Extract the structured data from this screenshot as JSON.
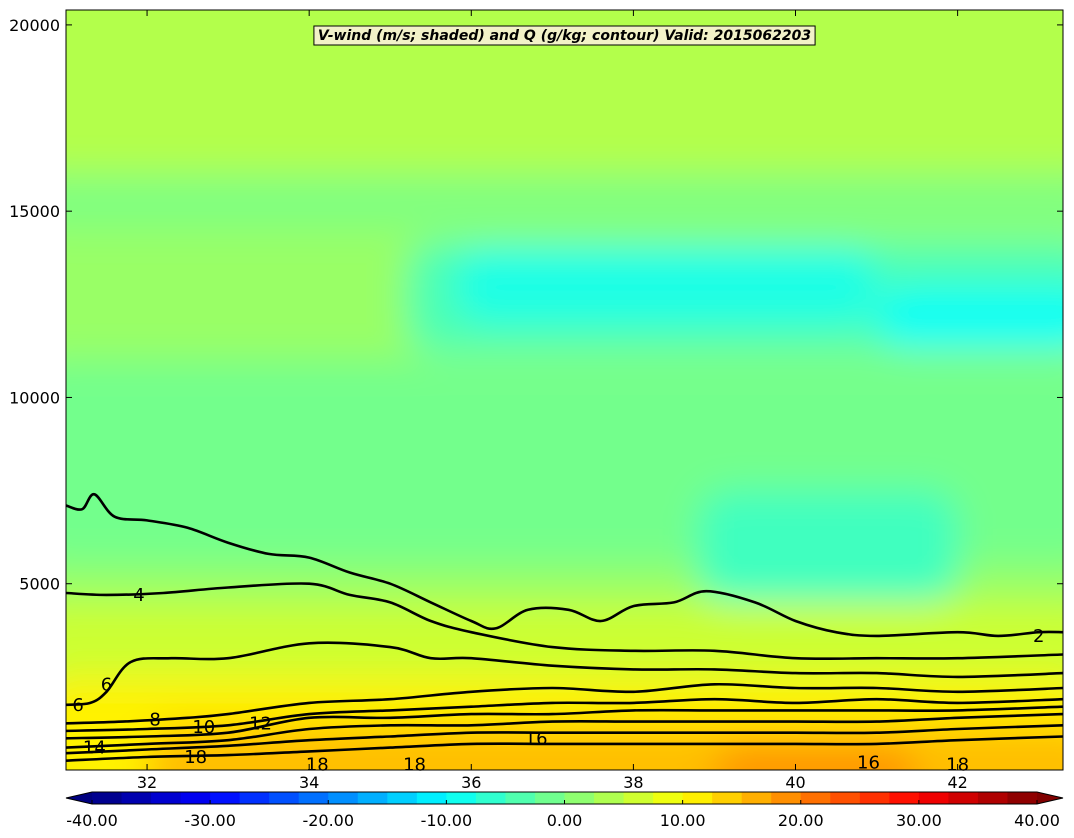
{
  "chart_data": {
    "type": "heatmap",
    "title": "V-wind (m/s; shaded) and Q (g/kg; contour) Valid: 2015062203",
    "xlabel": "",
    "ylabel": "",
    "xlim": [
      31.0,
      43.3
    ],
    "ylim": [
      0,
      20400
    ],
    "x_ticks": [
      32,
      34,
      36,
      38,
      40,
      42
    ],
    "y_ticks": [
      5000,
      10000,
      15000,
      20000
    ],
    "colorbar": {
      "orientation": "horizontal",
      "range": [
        -40,
        40
      ],
      "ticks": [
        "-40.00",
        "-30.00",
        "-20.00",
        "-10.00",
        "0.00",
        "10.00",
        "20.00",
        "30.00",
        "40.00"
      ],
      "extend": "both"
    },
    "shaded_field": {
      "name": "V-wind (m/s)",
      "colormap": "jet",
      "regions": [
        {
          "x_range": [
            31.0,
            43.3
          ],
          "y_range": [
            0,
            20400
          ],
          "value": 2
        },
        {
          "x_range": [
            31.0,
            43.3
          ],
          "y_range": [
            16000,
            20400
          ],
          "value": 4
        },
        {
          "x_range": [
            31.0,
            43.3
          ],
          "y_range": [
            14500,
            16000
          ],
          "value": 0
        },
        {
          "x_range": [
            35.2,
            43.3
          ],
          "y_range": [
            11200,
            14200
          ],
          "value": -4
        },
        {
          "x_range": [
            35.8,
            41.0
          ],
          "y_range": [
            12000,
            14000
          ],
          "value": -8
        },
        {
          "x_range": [
            41.0,
            43.3
          ],
          "y_range": [
            11300,
            13000
          ],
          "value": -9
        },
        {
          "x_range": [
            31.0,
            43.3
          ],
          "y_range": [
            5500,
            11000
          ],
          "value": -1
        },
        {
          "x_range": [
            38.8,
            42.0
          ],
          "y_range": [
            4500,
            7500
          ],
          "value": -5
        },
        {
          "x_range": [
            31.0,
            43.3
          ],
          "y_range": [
            2500,
            4500
          ],
          "value": 6
        },
        {
          "x_range": [
            31.0,
            43.3
          ],
          "y_range": [
            0,
            2500
          ],
          "value": 11
        },
        {
          "x_range": [
            32.0,
            43.3
          ],
          "y_range": [
            0,
            1200
          ],
          "value": 15
        },
        {
          "x_range": [
            39.0,
            41.5
          ],
          "y_range": [
            0,
            700
          ],
          "value": 18
        }
      ]
    },
    "contour_field": {
      "name": "Q (g/kg)",
      "color": "#000000",
      "levels": [
        {
          "level": 2,
          "label": "2",
          "label_at": [
            43.0,
            3600
          ],
          "path": [
            [
              31.0,
              7100
            ],
            [
              31.2,
              7000
            ],
            [
              31.35,
              7400
            ],
            [
              31.6,
              6800
            ],
            [
              32.0,
              6700
            ],
            [
              32.5,
              6500
            ],
            [
              33.0,
              6100
            ],
            [
              33.5,
              5800
            ],
            [
              34.0,
              5700
            ],
            [
              34.5,
              5300
            ],
            [
              35.0,
              5000
            ],
            [
              35.5,
              4500
            ],
            [
              36.0,
              4000
            ],
            [
              36.3,
              3800
            ],
            [
              36.7,
              4300
            ],
            [
              37.2,
              4300
            ],
            [
              37.6,
              4000
            ],
            [
              38.0,
              4400
            ],
            [
              38.5,
              4500
            ],
            [
              38.9,
              4800
            ],
            [
              39.5,
              4500
            ],
            [
              40.0,
              4000
            ],
            [
              40.5,
              3700
            ],
            [
              41.0,
              3600
            ],
            [
              42.0,
              3700
            ],
            [
              42.5,
              3600
            ],
            [
              43.0,
              3700
            ],
            [
              43.3,
              3700
            ]
          ]
        },
        {
          "level": 4,
          "label": "4",
          "label_at": [
            31.9,
            4700
          ],
          "path": [
            [
              31.0,
              4750
            ],
            [
              31.5,
              4700
            ],
            [
              32.2,
              4750
            ],
            [
              33.0,
              4900
            ],
            [
              34.0,
              5000
            ],
            [
              34.5,
              4700
            ],
            [
              35.0,
              4500
            ],
            [
              35.5,
              4000
            ],
            [
              36.0,
              3700
            ],
            [
              37.0,
              3300
            ],
            [
              38.0,
              3200
            ],
            [
              39.0,
              3200
            ],
            [
              40.0,
              3000
            ],
            [
              41.0,
              3000
            ],
            [
              42.0,
              3000
            ],
            [
              43.3,
              3100
            ]
          ]
        },
        {
          "level": 6,
          "label": "6",
          "label_at": [
            31.15,
            1750
          ],
          "path": [
            [
              31.0,
              1750
            ],
            [
              31.3,
              1800
            ],
            [
              31.5,
              2100
            ],
            [
              31.8,
              2900
            ],
            [
              32.3,
              3000
            ],
            [
              33.0,
              3000
            ],
            [
              34.0,
              3400
            ],
            [
              35.0,
              3300
            ],
            [
              35.5,
              3000
            ],
            [
              36.0,
              3000
            ],
            [
              37.0,
              2800
            ],
            [
              38.0,
              2700
            ],
            [
              39.0,
              2700
            ],
            [
              40.0,
              2600
            ],
            [
              41.0,
              2600
            ],
            [
              42.0,
              2500
            ],
            [
              43.3,
              2600
            ]
          ]
        },
        {
          "level": 8,
          "label": "8",
          "label_at": [
            32.1,
            1350
          ],
          "path": [
            [
              31.0,
              1250
            ],
            [
              31.7,
              1300
            ],
            [
              32.5,
              1400
            ],
            [
              33.0,
              1500
            ],
            [
              34.0,
              1800
            ],
            [
              35.0,
              1900
            ],
            [
              36.0,
              2100
            ],
            [
              37.0,
              2200
            ],
            [
              38.0,
              2100
            ],
            [
              39.0,
              2300
            ],
            [
              40.0,
              2200
            ],
            [
              41.0,
              2200
            ],
            [
              42.0,
              2100
            ],
            [
              43.3,
              2200
            ]
          ]
        },
        {
          "level": 10,
          "label": "10",
          "label_at": [
            32.7,
            1150
          ],
          "path": [
            [
              31.0,
              1050
            ],
            [
              32.0,
              1100
            ],
            [
              33.0,
              1200
            ],
            [
              34.0,
              1500
            ],
            [
              35.0,
              1600
            ],
            [
              36.0,
              1700
            ],
            [
              37.0,
              1800
            ],
            [
              38.0,
              1800
            ],
            [
              39.0,
              1900
            ],
            [
              40.0,
              1800
            ],
            [
              41.0,
              1900
            ],
            [
              42.0,
              1800
            ],
            [
              43.3,
              1900
            ]
          ]
        },
        {
          "level": 12,
          "label": "12",
          "label_at": [
            33.4,
            1250
          ],
          "path": [
            [
              31.0,
              850
            ],
            [
              32.0,
              900
            ],
            [
              33.0,
              1000
            ],
            [
              34.0,
              1400
            ],
            [
              35.0,
              1400
            ],
            [
              36.0,
              1500
            ],
            [
              37.0,
              1500
            ],
            [
              38.0,
              1600
            ],
            [
              39.0,
              1600
            ],
            [
              40.0,
              1600
            ],
            [
              41.0,
              1600
            ],
            [
              42.0,
              1600
            ],
            [
              43.3,
              1700
            ]
          ]
        },
        {
          "level": 14,
          "label": "14",
          "label_at": [
            31.35,
            600
          ],
          "path": [
            [
              31.0,
              600
            ],
            [
              32.0,
              700
            ],
            [
              33.0,
              800
            ],
            [
              34.0,
              1100
            ],
            [
              35.0,
              1200
            ],
            [
              36.0,
              1200
            ],
            [
              37.0,
              1300
            ],
            [
              38.0,
              1300
            ],
            [
              39.0,
              1300
            ],
            [
              40.0,
              1300
            ],
            [
              41.0,
              1300
            ],
            [
              42.0,
              1400
            ],
            [
              43.3,
              1500
            ]
          ]
        },
        {
          "level": 16,
          "label": "16",
          "label_at": [
            36.8,
            850
          ],
          "path": [
            [
              31.0,
              450
            ],
            [
              32.0,
              550
            ],
            [
              33.0,
              650
            ],
            [
              34.0,
              800
            ],
            [
              35.0,
              900
            ],
            [
              36.0,
              1000
            ],
            [
              37.0,
              1000
            ],
            [
              38.0,
              1000
            ],
            [
              39.0,
              1000
            ],
            [
              40.0,
              1000
            ],
            [
              41.0,
              1000
            ],
            [
              42.0,
              1100
            ],
            [
              43.3,
              1200
            ]
          ]
        },
        {
          "level": 18,
          "label": "18",
          "label_at": [
            32.6,
            350
          ],
          "path": [
            [
              31.0,
              250
            ],
            [
              32.0,
              350
            ],
            [
              33.0,
              400
            ],
            [
              34.0,
              500
            ],
            [
              35.0,
              600
            ],
            [
              36.0,
              700
            ],
            [
              37.0,
              700
            ],
            [
              38.0,
              700
            ],
            [
              39.0,
              700
            ],
            [
              40.0,
              700
            ],
            [
              41.0,
              700
            ],
            [
              42.0,
              800
            ],
            [
              43.3,
              900
            ]
          ]
        }
      ],
      "extra_labels": [
        {
          "label": "18",
          "x": 34.1,
          "y": 150
        },
        {
          "label": "18",
          "x": 35.3,
          "y": 150
        },
        {
          "label": "16",
          "x": 40.9,
          "y": 200
        },
        {
          "label": "18",
          "x": 42.0,
          "y": 150
        },
        {
          "label": "6",
          "x": 31.5,
          "y": 2300
        }
      ]
    }
  }
}
